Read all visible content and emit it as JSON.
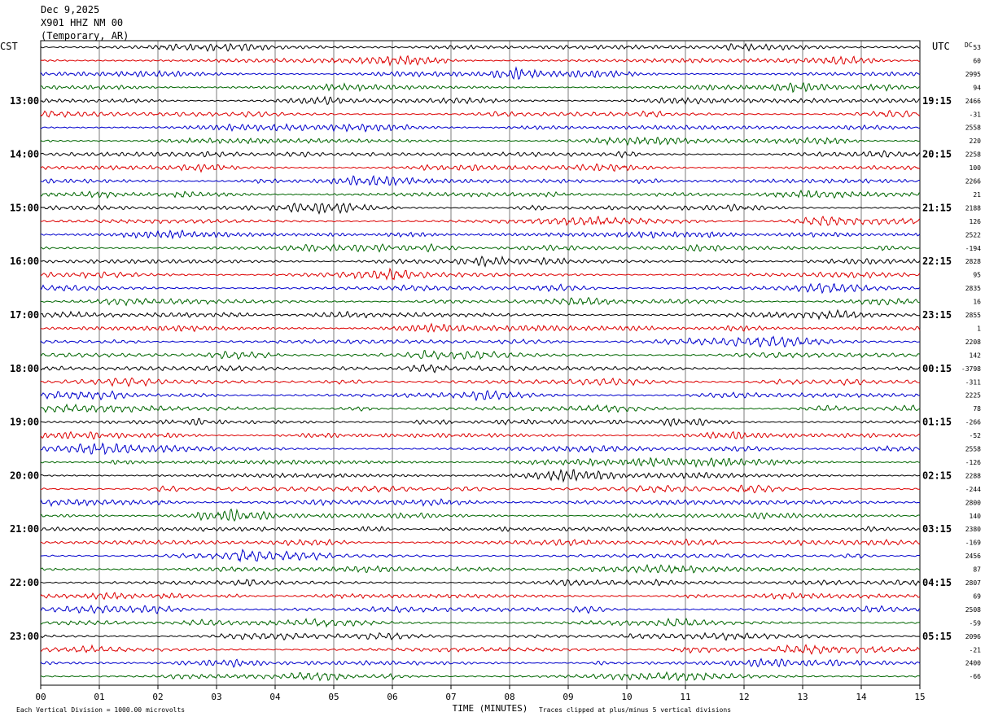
{
  "header": {
    "date": "Dec 9,2025",
    "station": "X901 HHZ NM 00",
    "network": "(Temporary, AR)"
  },
  "chart_data": {
    "type": "line",
    "title": "",
    "xlabel": "TIME (MINUTES)",
    "ylabel": "",
    "left_timezone": "CST",
    "right_timezone": "UTC",
    "dc_label": "DC",
    "x_ticks": [
      "00",
      "01",
      "02",
      "03",
      "04",
      "05",
      "06",
      "07",
      "08",
      "09",
      "10",
      "11",
      "12",
      "13",
      "14",
      "15"
    ],
    "xlim": [
      0,
      15
    ],
    "left_hour_labels": [
      "13:00",
      "14:00",
      "15:00",
      "16:00",
      "17:00",
      "18:00",
      "19:00",
      "20:00",
      "21:00",
      "22:00",
      "23:00"
    ],
    "right_hour_labels": [
      "19:15",
      "20:15",
      "21:15",
      "22:15",
      "23:15",
      "00:15",
      "01:15",
      "02:15",
      "03:15",
      "04:15",
      "05:15"
    ],
    "trace_colors": [
      "#000000",
      "#dd0000",
      "#0000cc",
      "#006600"
    ],
    "dc_offsets": [
      "53",
      "60",
      "2995",
      "94",
      "2466",
      "-31",
      "2558",
      "220",
      "2258",
      "100",
      "2266",
      "21",
      "2188",
      "126",
      "2522",
      "-194",
      "2828",
      "95",
      "2835",
      "16",
      "2855",
      "1",
      "2208",
      "142",
      "-3798",
      "-311",
      "2225",
      "78",
      "-266",
      "-52",
      "2558",
      "-126",
      "2288",
      "-244",
      "2800",
      "140",
      "2380",
      "-169",
      "2456",
      "87",
      "2807",
      "69",
      "2508",
      "-59",
      "2096",
      "-21",
      "2400",
      "-66"
    ],
    "footer_left": "Each Vertical Division = 1000.00 microvolts",
    "footer_right": "Traces clipped at plus/minus 5 vertical divisions"
  }
}
